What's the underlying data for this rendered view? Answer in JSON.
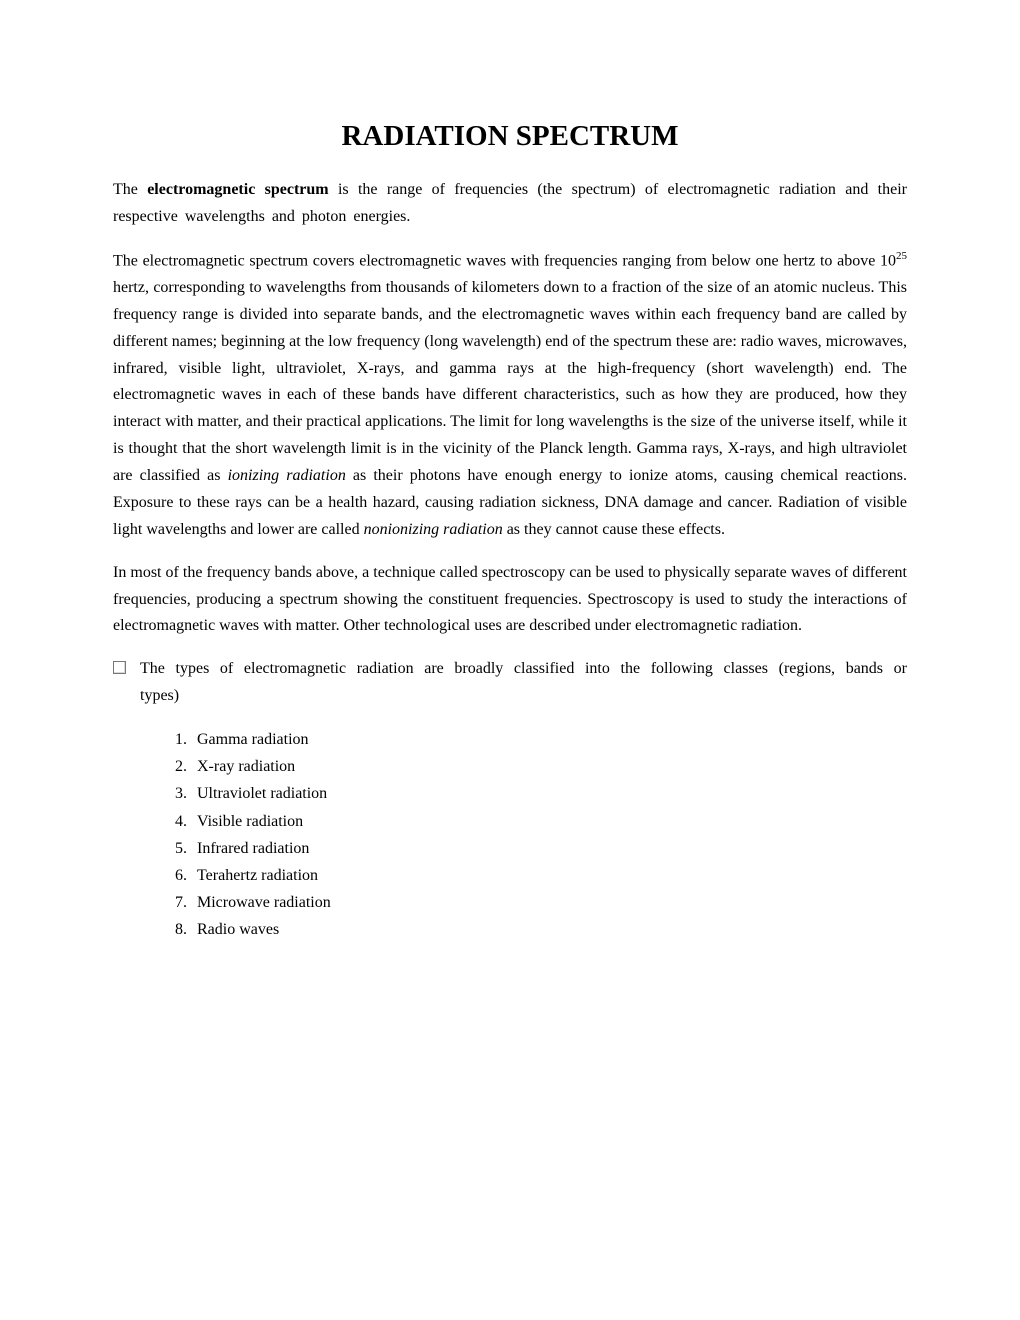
{
  "document": {
    "title": "RADIATION SPECTRUM",
    "p1": {
      "a": "The ",
      "bold": "electromagnetic  spectrum",
      "b": " is  the  range  of frequencies (the spectrum)  of electromagnetic radiation and their respective wavelengths and photon energies."
    },
    "p2": {
      "a": "The electromagnetic spectrum covers electromagnetic waves with frequencies ranging from below one hertz to above 10",
      "sup": "25",
      "b": " hertz, corresponding to wavelengths from thousands of kilometers down to a fraction of the size of an atomic nucleus. This frequency range is divided into separate bands, and the electromagnetic waves within each frequency band are called by different names; beginning at the low frequency (long wavelength) end of the spectrum these are: radio waves, microwaves, infrared, visible light, ultraviolet, X-rays, and gamma rays at the high-frequency (short wavelength) end. The electromagnetic waves in each of these bands have different characteristics, such as how they are produced, how they interact with matter, and their practical applications. The limit for long wavelengths is the size of the universe itself, while it is thought that the short wavelength limit is in the vicinity of the Planck length. Gamma rays, X-rays, and high ultraviolet are classified as ",
      "italic1": "ionizing radiation",
      "c": " as their photons have enough energy to ionize atoms, causing chemical reactions. Exposure to these rays can be a health hazard, causing radiation sickness, DNA damage and cancer. Radiation of visible light wavelengths and lower are called ",
      "italic2": "nonionizing radiation",
      "d": " as they cannot cause these effects."
    },
    "p3": "In most of the frequency bands above, a technique called spectroscopy can be used to physically separate waves of different frequencies, producing a spectrum showing the constituent frequencies. Spectroscopy is used to study the interactions of electromagnetic waves with matter. Other technological uses are described under electromagnetic radiation.",
    "p4": "The types of electromagnetic radiation are broadly classified into the following classes (regions, bands or types)",
    "list": {
      "i1": "Gamma radiation",
      "i2": "X-ray radiation",
      "i3": "Ultraviolet radiation",
      "i4": "Visible radiation",
      "i5": "Infrared radiation",
      "i6": "Terahertz radiation",
      "i7": "Microwave radiation",
      "i8": "Radio waves"
    }
  },
  "style": {
    "background_color": "#ffffff",
    "text_color": "#000000",
    "title_fontsize": 29,
    "body_fontsize": 16,
    "font_family": "Times New Roman"
  }
}
